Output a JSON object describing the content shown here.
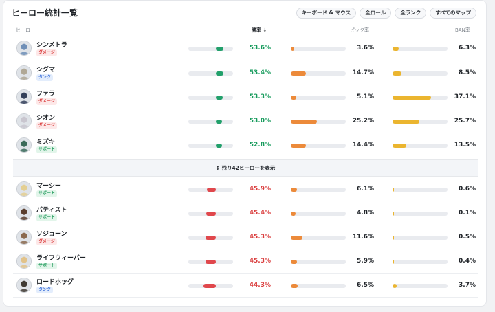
{
  "title": "ヒーロー統計一覧",
  "filters": [
    "キーボード & マウス",
    "全ロール",
    "全ランク",
    "すべてのマップ"
  ],
  "columns": {
    "hero": "ヒーロー",
    "win": "勝率 ↓",
    "pick": "ピック率",
    "ban": "BAN率"
  },
  "show_more": "↕ 残り42ヒーローを表示",
  "colors": {
    "win_up": "#22a06b",
    "win_down": "#e0474c",
    "pick": "#ec8a3a",
    "ban": "#ebb52f"
  },
  "top_rows": [
    {
      "name": "シンメトラ",
      "role": "ダメージ",
      "role_type": "dmg",
      "win": "53.6%",
      "win_frac": 0.536,
      "pick": "3.6%",
      "pick_frac": 0.036,
      "ban": "6.3%",
      "ban_frac": 0.063,
      "avatar_color": "#6f8fb7"
    },
    {
      "name": "シグマ",
      "role": "タンク",
      "role_type": "tank",
      "win": "53.4%",
      "win_frac": 0.534,
      "pick": "14.7%",
      "pick_frac": 0.147,
      "ban": "8.5%",
      "ban_frac": 0.085,
      "avatar_color": "#b0a896"
    },
    {
      "name": "ファラ",
      "role": "ダメージ",
      "role_type": "dmg",
      "win": "53.3%",
      "win_frac": 0.533,
      "pick": "5.1%",
      "pick_frac": 0.051,
      "ban": "37.1%",
      "ban_frac": 0.371,
      "avatar_color": "#34405a"
    },
    {
      "name": "シオン",
      "role": "ダメージ",
      "role_type": "dmg",
      "win": "53.0%",
      "win_frac": 0.53,
      "pick": "25.2%",
      "pick_frac": 0.252,
      "ban": "25.7%",
      "ban_frac": 0.257,
      "avatar_color": "#c9c6cf"
    },
    {
      "name": "ミズキ",
      "role": "サポート",
      "role_type": "sup",
      "win": "52.8%",
      "win_frac": 0.528,
      "pick": "14.4%",
      "pick_frac": 0.144,
      "ban": "13.5%",
      "ban_frac": 0.135,
      "avatar_color": "#3b6b5a"
    }
  ],
  "bottom_rows": [
    {
      "name": "マーシー",
      "role": "サポート",
      "role_type": "sup",
      "win": "45.9%",
      "win_frac": 0.459,
      "pick": "6.1%",
      "pick_frac": 0.061,
      "ban": "0.6%",
      "ban_frac": 0.006,
      "avatar_color": "#e4cf92"
    },
    {
      "name": "バティスト",
      "role": "サポート",
      "role_type": "sup",
      "win": "45.4%",
      "win_frac": 0.454,
      "pick": "4.8%",
      "pick_frac": 0.048,
      "ban": "0.1%",
      "ban_frac": 0.001,
      "avatar_color": "#5a3e2e"
    },
    {
      "name": "ソジョーン",
      "role": "ダメージ",
      "role_type": "dmg",
      "win": "45.3%",
      "win_frac": 0.453,
      "pick": "11.6%",
      "pick_frac": 0.116,
      "ban": "0.5%",
      "ban_frac": 0.005,
      "avatar_color": "#8b6a4f"
    },
    {
      "name": "ライフウィーバー",
      "role": "サポート",
      "role_type": "sup",
      "win": "45.3%",
      "win_frac": 0.453,
      "pick": "5.9%",
      "pick_frac": 0.059,
      "ban": "0.4%",
      "ban_frac": 0.004,
      "avatar_color": "#e2c38a"
    },
    {
      "name": "ロードホッグ",
      "role": "タンク",
      "role_type": "tank",
      "win": "44.3%",
      "win_frac": 0.443,
      "pick": "6.5%",
      "pick_frac": 0.065,
      "ban": "3.7%",
      "ban_frac": 0.037,
      "avatar_color": "#3f3a33"
    }
  ]
}
